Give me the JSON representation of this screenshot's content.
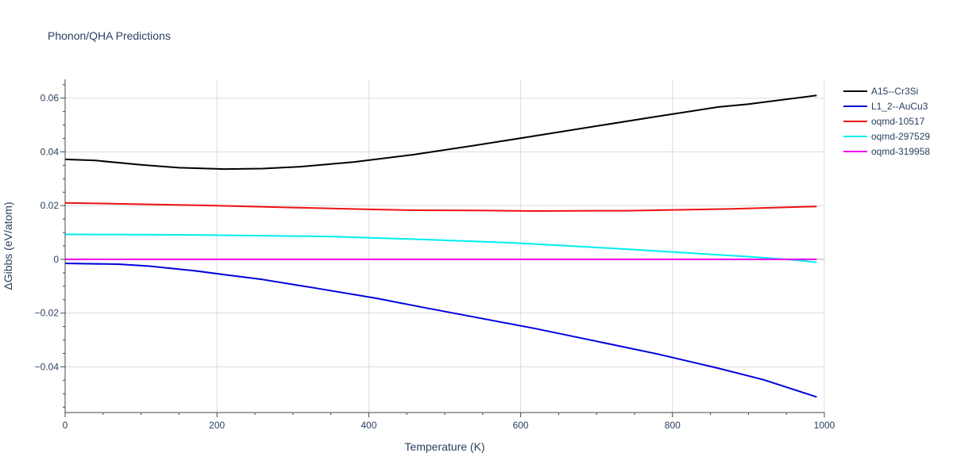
{
  "chart_data": {
    "type": "line",
    "title": "Phonon/QHA Predictions",
    "xlabel": "Temperature (K)",
    "ylabel": "ΔGibbs (eV/atom)",
    "xlim": [
      0,
      1000
    ],
    "ylim": [
      -0.057,
      0.067
    ],
    "x_ticks": [
      0,
      200,
      400,
      600,
      800,
      1000
    ],
    "x_tick_labels": [
      "0",
      "200",
      "400",
      "600",
      "800",
      "1000"
    ],
    "y_ticks": [
      -0.04,
      -0.02,
      0,
      0.02,
      0.04,
      0.06
    ],
    "y_tick_labels": [
      "−0.04",
      "−0.02",
      "0",
      "0.02",
      "0.04",
      "0.06"
    ],
    "grid": true,
    "legend_position": "top-right",
    "series": [
      {
        "name": "A15--Cr3Si",
        "color": "#000000",
        "x": [
          0,
          40,
          100,
          150,
          210,
          260,
          310,
          380,
          460,
          540,
          620,
          700,
          780,
          860,
          900,
          990
        ],
        "y": [
          0.0372,
          0.0368,
          0.0352,
          0.0341,
          0.0336,
          0.0338,
          0.0345,
          0.0362,
          0.039,
          0.0424,
          0.046,
          0.0496,
          0.0532,
          0.0567,
          0.0578,
          0.061
        ]
      },
      {
        "name": "L1_2--AuCu3",
        "color": "#0000dd",
        "x": [
          0,
          70,
          110,
          170,
          210,
          260,
          330,
          410,
          470,
          540,
          620,
          700,
          780,
          860,
          920,
          990
        ],
        "y": [
          -0.0015,
          -0.0018,
          -0.0025,
          -0.0042,
          -0.0057,
          -0.0075,
          -0.0107,
          -0.0145,
          -0.0178,
          -0.0215,
          -0.0258,
          -0.0305,
          -0.0352,
          -0.0405,
          -0.0448,
          -0.0512
        ]
      },
      {
        "name": "oqmd-10517",
        "color": "#ee1111",
        "x": [
          0,
          90,
          200,
          300,
          400,
          460,
          540,
          620,
          700,
          740,
          800,
          880,
          990
        ],
        "y": [
          0.021,
          0.0206,
          0.02,
          0.0193,
          0.0186,
          0.0183,
          0.0182,
          0.018,
          0.0181,
          0.0181,
          0.0184,
          0.0188,
          0.0197
        ]
      },
      {
        "name": "oqmd-297529",
        "color": "#00eeee",
        "x": [
          0,
          100,
          170,
          260,
          350,
          460,
          540,
          600,
          660,
          740,
          820,
          900,
          960,
          990
        ],
        "y": [
          0.0093,
          0.0092,
          0.0091,
          0.0088,
          0.0085,
          0.0075,
          0.0067,
          0.006,
          0.0051,
          0.0038,
          0.0024,
          0.001,
          -0.0002,
          -0.0011
        ]
      },
      {
        "name": "oqmd-319958",
        "color": "#ee00ee",
        "x": [
          0,
          990
        ],
        "y": [
          0,
          0
        ]
      }
    ]
  }
}
